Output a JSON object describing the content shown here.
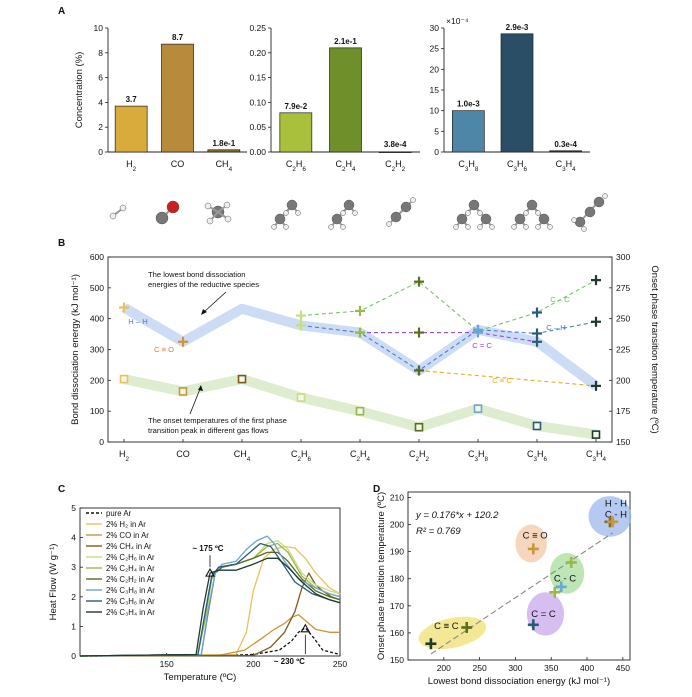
{
  "panels": {
    "a": {
      "letter": "A"
    },
    "b": {
      "letter": "B"
    },
    "c": {
      "letter": "C"
    },
    "d": {
      "letter": "D"
    }
  },
  "chart_data": [
    {
      "id": "A",
      "type": "bar",
      "ylabel": "Concentration (%)",
      "groups": [
        {
          "categories": [
            "H2",
            "CO",
            "CH4"
          ],
          "values": [
            3.7,
            8.7,
            0.18
          ],
          "labels": [
            "3.7",
            "8.7",
            "1.8e-1"
          ],
          "ylim": [
            0,
            10
          ],
          "yticks": [
            "0",
            "2",
            "4",
            "6",
            "8",
            "10"
          ],
          "ytick_values": [
            0,
            2,
            4,
            6,
            8,
            10
          ],
          "scale_note": "",
          "colors": [
            "#d9aa3c",
            "#b88a3c",
            "#8a6a2a"
          ]
        },
        {
          "categories": [
            "C2H6",
            "C2H4",
            "C2H2"
          ],
          "values": [
            0.079,
            0.21,
            0.00038
          ],
          "labels": [
            "7.9e-2",
            "2.1e-1",
            "3.8e-4"
          ],
          "ylim": [
            0,
            0.25
          ],
          "yticks": [
            "0.00",
            "0.05",
            "0.10",
            "0.15",
            "0.20",
            "0.25"
          ],
          "ytick_values": [
            0,
            0.05,
            0.1,
            0.15,
            0.2,
            0.25
          ],
          "scale_note": "",
          "colors": [
            "#a8c03c",
            "#6e8f2a",
            "#4d6a20"
          ]
        },
        {
          "categories": [
            "C3H8",
            "C3H6",
            "C3H4"
          ],
          "values": [
            10,
            28.6,
            0.3
          ],
          "labels": [
            "1.0e-3",
            "2.9e-3",
            "0.3e-4"
          ],
          "ylim": [
            0,
            30
          ],
          "yticks": [
            "0",
            "5",
            "10",
            "15",
            "20",
            "25",
            "30"
          ],
          "ytick_values": [
            0,
            5,
            10,
            15,
            20,
            25,
            30
          ],
          "scale_note": "×10⁻⁴",
          "colors": [
            "#4d86a6",
            "#2a4e66",
            "#1e3a50"
          ]
        }
      ]
    },
    {
      "id": "B",
      "type": "line",
      "categories": [
        "H2",
        "CO",
        "CH4",
        "C2H6",
        "C2H4",
        "C2H2",
        "C3H8",
        "C3H6",
        "C3H4"
      ],
      "ylabel_left": "Bond dissociation energy (kJ mol⁻¹)",
      "ylabel_right": "Onset phase transition temperature (ºC)",
      "ylim_left": [
        0,
        600
      ],
      "ylim_right": [
        150,
        300
      ],
      "yticks_left": [
        0,
        100,
        200,
        300,
        400,
        500,
        600
      ],
      "yticks_right": [
        150,
        175,
        200,
        225,
        250,
        275,
        300
      ],
      "lowest_bde": [
        436,
        325,
        432,
        378,
        355,
        232,
        364,
        325,
        182
      ],
      "onset_temp": [
        201,
        191,
        201,
        186,
        175,
        162,
        177,
        163,
        156
      ],
      "bond_series": [
        {
          "name": "C – C",
          "color": "#74c46a",
          "x": [
            3,
            4,
            5,
            6,
            7,
            8
          ],
          "y": [
            410,
            425,
            520,
            360,
            420,
            525
          ]
        },
        {
          "name": "C – H",
          "color": "#4a7ad6",
          "x": [
            3,
            4,
            5,
            6,
            7,
            8
          ],
          "y": [
            378,
            355,
            232,
            364,
            352,
            390
          ]
        },
        {
          "name": "C = C",
          "color": "#9a4ad6",
          "x": [
            4,
            5,
            6,
            7
          ],
          "y": [
            355,
            355,
            355,
            325
          ]
        },
        {
          "name": "C ≡ C",
          "color": "#e0b020",
          "x": [
            5,
            8
          ],
          "y": [
            232,
            182
          ]
        },
        {
          "name": "H – H",
          "color": "#4a7ad6",
          "x": [
            0
          ],
          "y": [
            436
          ]
        },
        {
          "name": "C ≡ O",
          "color": "#e07a3a",
          "x": [
            1
          ],
          "y": [
            325
          ]
        }
      ],
      "annotations": {
        "top": "The lowest bond dissociation energies of the reductive species",
        "top_line1": "The lowest bond dissociation",
        "top_line2": "energies of the reductive species",
        "bottom_line1": "The onset temperatures of the first phase",
        "bottom_line2": "transition peak in different gas flows"
      }
    },
    {
      "id": "C",
      "type": "line",
      "xlabel": "Temperature (ºC)",
      "ylabel": "Heat Flow (W g⁻¹)",
      "xlim": [
        100,
        250
      ],
      "ylim": [
        0,
        5
      ],
      "xticks": [
        150,
        200,
        250
      ],
      "yticks": [
        0,
        1,
        2,
        3,
        4,
        5
      ],
      "series": [
        {
          "name": "pure Ar",
          "color": "#111111",
          "dash": true,
          "x": [
            100,
            180,
            200,
            215,
            222,
            226,
            230,
            235,
            240,
            250
          ],
          "y": [
            0,
            0.02,
            0.05,
            0.2,
            0.5,
            0.8,
            0.95,
            0.6,
            0.2,
            0.05
          ]
        },
        {
          "name": "2% H₂ in Ar",
          "color": "#e8c060",
          "x": [
            100,
            190,
            196,
            200,
            206,
            212,
            218,
            224,
            230,
            236,
            244,
            250
          ],
          "y": [
            0,
            0.05,
            0.8,
            2.2,
            3.3,
            3.6,
            3.7,
            3.65,
            3.3,
            2.8,
            2.3,
            2.1
          ]
        },
        {
          "name": "2% CO in Ar",
          "color": "#c8963c",
          "x": [
            100,
            180,
            195,
            205,
            212,
            218,
            222,
            226,
            230,
            236,
            244,
            250
          ],
          "y": [
            0,
            0.02,
            0.2,
            0.6,
            0.9,
            1.1,
            1.3,
            1.4,
            1.2,
            0.9,
            0.8,
            0.8
          ]
        },
        {
          "name": "2% CH₄ in Ar",
          "color": "#7a5a1e",
          "x": [
            100,
            200,
            210,
            218,
            224,
            228,
            232,
            236,
            240,
            245,
            250
          ],
          "y": [
            0,
            0.02,
            0.3,
            0.8,
            1.5,
            2.3,
            2.8,
            2.4,
            2.2,
            2.0,
            1.9
          ]
        },
        {
          "name": "2% C₂H₆ in Ar",
          "color": "#c8dc80",
          "x": [
            100,
            168,
            172,
            176,
            180,
            190,
            200,
            208,
            214,
            220,
            228,
            236,
            244,
            250
          ],
          "y": [
            0,
            0.05,
            1.2,
            2.6,
            3.0,
            3.1,
            3.3,
            3.8,
            3.9,
            3.6,
            2.8,
            2.4,
            2.2,
            2.1
          ]
        },
        {
          "name": "2% C₂H₄ in Ar",
          "color": "#98b848",
          "x": [
            100,
            168,
            172,
            176,
            180,
            190,
            200,
            208,
            214,
            220,
            228,
            236,
            244,
            250
          ],
          "y": [
            0,
            0.05,
            1.2,
            2.6,
            3.0,
            3.1,
            3.3,
            3.7,
            3.8,
            3.5,
            2.7,
            2.3,
            2.1,
            2.0
          ]
        },
        {
          "name": "2% C₂H₂ in Ar",
          "color": "#5a6e1e",
          "x": [
            100,
            170,
            174,
            178,
            182,
            190,
            200,
            208,
            214,
            220,
            228,
            236,
            244,
            250
          ],
          "y": [
            0,
            0.05,
            1.5,
            2.8,
            3.0,
            3.1,
            3.3,
            3.5,
            3.5,
            3.2,
            2.6,
            2.2,
            2.0,
            1.9
          ]
        },
        {
          "name": "2% C₃H₈ in Ar",
          "color": "#6aa6d6",
          "x": [
            100,
            170,
            174,
            178,
            182,
            190,
            196,
            202,
            208,
            212,
            218,
            226,
            236,
            244,
            250
          ],
          "y": [
            0,
            0.05,
            1.6,
            2.8,
            3.1,
            3.2,
            3.6,
            3.9,
            4.05,
            3.8,
            3.2,
            2.6,
            2.3,
            2.1,
            2.0
          ]
        },
        {
          "name": "2% C₃H₆ in Ar",
          "color": "#2a5a7a",
          "x": [
            100,
            168,
            172,
            176,
            180,
            190,
            198,
            204,
            210,
            216,
            224,
            234,
            244,
            250
          ],
          "y": [
            0,
            0.05,
            1.4,
            2.7,
            3.0,
            3.1,
            3.5,
            3.8,
            3.7,
            3.2,
            2.5,
            2.1,
            1.9,
            1.8
          ]
        },
        {
          "name": "2% C₃H₄ in Ar",
          "color": "#1e3a2e",
          "x": [
            100,
            167,
            171,
            175,
            180,
            190,
            200,
            208,
            214,
            220,
            228,
            236,
            244,
            250
          ],
          "y": [
            0,
            0.05,
            1.6,
            2.8,
            2.9,
            2.9,
            3.1,
            3.3,
            3.3,
            3.0,
            2.5,
            2.1,
            1.9,
            1.8
          ]
        }
      ],
      "annotations": [
        {
          "label": "~ 175 ºC",
          "x": 175,
          "y": 2.8
        },
        {
          "label": "~ 230 ºC",
          "x": 230,
          "y": 0.92
        }
      ]
    },
    {
      "id": "D",
      "type": "scatter",
      "xlabel": "Lowest bond dissociation energy (kJ mol⁻¹)",
      "ylabel": "Onset phase transition temperature (ºC)",
      "xlim": [
        150,
        460
      ],
      "ylim": [
        150,
        212
      ],
      "xticks": [
        200,
        250,
        300,
        350,
        400,
        450
      ],
      "yticks": [
        150,
        160,
        170,
        180,
        190,
        200,
        210
      ],
      "equation": "y = 0.176*x + 120.2",
      "r2": "R² = 0.769",
      "fit": {
        "slope": 0.176,
        "intercept": 120.2
      },
      "points": [
        {
          "x": 432,
          "y": 201,
          "color": "#8a6a2a"
        },
        {
          "x": 436,
          "y": 201,
          "color": "#c8963c"
        },
        {
          "x": 325,
          "y": 191,
          "color": "#c8963c"
        },
        {
          "x": 378,
          "y": 186,
          "color": "#98b848"
        },
        {
          "x": 364,
          "y": 177,
          "color": "#6aa6d6"
        },
        {
          "x": 355,
          "y": 175,
          "color": "#98b848"
        },
        {
          "x": 325,
          "y": 163,
          "color": "#2a5a7a"
        },
        {
          "x": 232,
          "y": 162,
          "color": "#5a6e1e"
        },
        {
          "x": 182,
          "y": 156,
          "color": "#1e3a2e"
        }
      ],
      "groups": [
        {
          "label": "H - H\nC - H",
          "label_line1": "H - H",
          "label_line2": "C - H",
          "color": "#9cb8ec",
          "cx": 432,
          "cy": 203,
          "rx": 30,
          "ry": 7.5
        },
        {
          "label": "C ≡ O",
          "color": "#f2c9a8",
          "cx": 322,
          "cy": 193,
          "rx": 22,
          "ry": 7
        },
        {
          "label": "C - C",
          "color": "#a8dc9c",
          "cx": 372,
          "cy": 182,
          "rx": 24,
          "ry": 7.5
        },
        {
          "label": "C = C",
          "color": "#c8a8ec",
          "cx": 342,
          "cy": 167,
          "rx": 26,
          "ry": 8
        },
        {
          "label": "C ≡ C",
          "color": "#f2e070",
          "cx": 212,
          "cy": 160,
          "rx": 48,
          "ry": 5.5
        }
      ]
    }
  ]
}
